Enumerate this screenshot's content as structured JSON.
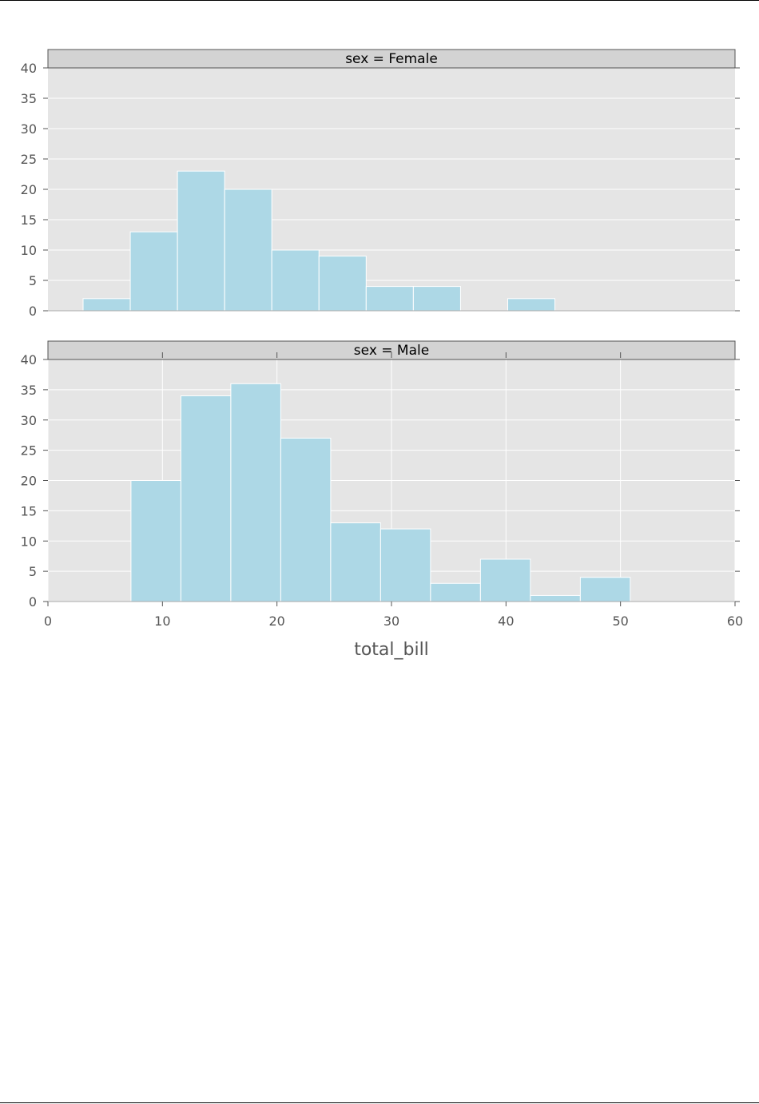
{
  "chart_data": {
    "type": "bar",
    "layout": "facet-grid",
    "xlabel": "total_bill",
    "xlim": [
      0,
      60
    ],
    "ylim": [
      0,
      40
    ],
    "xticks": [
      0,
      10,
      20,
      30,
      40,
      50,
      60
    ],
    "yticks": [
      0,
      5,
      10,
      15,
      20,
      25,
      30,
      35,
      40
    ],
    "grid": true,
    "colors": {
      "bar_fill": "#add8e6",
      "panel_bg": "#e5e5e5",
      "strip_bg": "#d3d3d3",
      "grid": "#ffffff",
      "tick_text": "#555555"
    },
    "facets": [
      {
        "title": "sex = Female",
        "bin_edges": [
          3.07,
          7.19,
          11.31,
          15.43,
          19.55,
          23.67,
          27.79,
          31.91,
          36.03,
          40.15,
          44.27
        ],
        "values": [
          2,
          13,
          23,
          20,
          10,
          9,
          4,
          4,
          0,
          2
        ]
      },
      {
        "title": "sex = Male",
        "bin_edges": [
          7.25,
          11.61,
          15.97,
          20.33,
          24.69,
          29.05,
          33.41,
          37.77,
          42.13,
          46.49,
          50.85
        ],
        "values": [
          20,
          34,
          36,
          27,
          13,
          12,
          3,
          7,
          1,
          4
        ]
      }
    ]
  }
}
